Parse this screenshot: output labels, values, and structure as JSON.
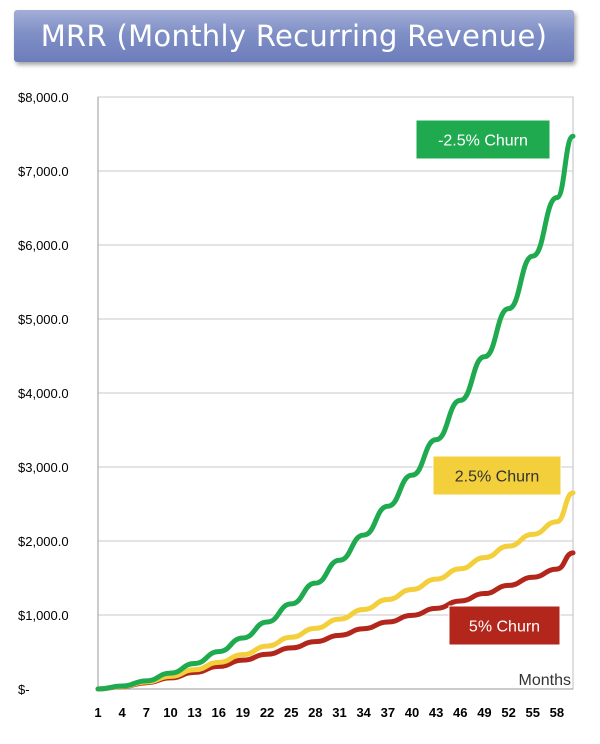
{
  "colors": {
    "title_bg": "#7f8fc6",
    "green": "#1faa50",
    "yellow": "#f2cf3b",
    "red": "#b2261c",
    "grid": "#c8c8c8"
  },
  "chart_data": {
    "type": "line",
    "title": "MRR (Monthly Recurring Revenue)",
    "xlabel": "Months",
    "ylabel": "",
    "ylim": [
      0,
      8000
    ],
    "xlim": [
      1,
      60
    ],
    "grid": true,
    "y_ticks": [
      {
        "value": 0,
        "label": "$-"
      },
      {
        "value": 1000,
        "label": "$1,000.0"
      },
      {
        "value": 2000,
        "label": "$2,000.0"
      },
      {
        "value": 3000,
        "label": "$3,000.0"
      },
      {
        "value": 4000,
        "label": "$4,000.0"
      },
      {
        "value": 5000,
        "label": "$5,000.0"
      },
      {
        "value": 6000,
        "label": "$6,000.0"
      },
      {
        "value": 7000,
        "label": "$7,000.0"
      },
      {
        "value": 8000,
        "label": "$8,000.0"
      }
    ],
    "x_ticks": [
      1,
      4,
      7,
      10,
      13,
      16,
      19,
      22,
      25,
      28,
      31,
      34,
      37,
      40,
      43,
      46,
      49,
      52,
      55,
      58
    ],
    "x": [
      1,
      4,
      7,
      10,
      13,
      16,
      19,
      22,
      25,
      28,
      31,
      34,
      37,
      40,
      43,
      46,
      49,
      52,
      55,
      58,
      60
    ],
    "series": [
      {
        "name": "-2.5% Churn",
        "color": "#1faa50",
        "values": [
          0,
          40,
          110,
          215,
          345,
          505,
          690,
          905,
          1150,
          1430,
          1740,
          2080,
          2470,
          2890,
          3370,
          3900,
          4490,
          5140,
          5850,
          6640,
          7470
        ]
      },
      {
        "name": "2.5% Churn",
        "color": "#f2cf3b",
        "values": [
          0,
          35,
          95,
          170,
          260,
          360,
          465,
          580,
          700,
          820,
          945,
          1075,
          1210,
          1345,
          1485,
          1625,
          1775,
          1930,
          2090,
          2260,
          2650
        ]
      },
      {
        "name": "5% Churn",
        "color": "#b2261c",
        "values": [
          0,
          32,
          85,
          150,
          225,
          305,
          390,
          470,
          555,
          640,
          725,
          815,
          905,
          995,
          1090,
          1190,
          1290,
          1400,
          1510,
          1620,
          1840
        ]
      }
    ],
    "annotations": [
      "-2.5% Churn",
      "2.5% Churn",
      "5% Churn"
    ]
  }
}
